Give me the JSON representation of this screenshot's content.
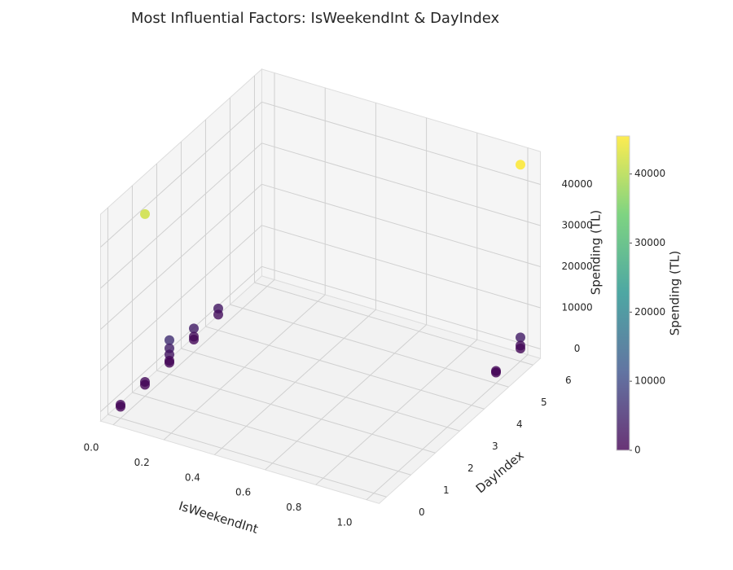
{
  "chart_data": {
    "type": "scatter3d",
    "title": "Most Influential Factors: IsWeekendInt & DayIndex",
    "xlabel": "IsWeekendInt",
    "ylabel": "DayIndex",
    "zlabel": "Spending (TL)",
    "x": [
      0,
      0,
      0,
      0,
      0,
      0,
      0,
      0,
      0,
      0,
      0,
      0,
      0,
      0,
      0,
      1,
      1,
      1,
      1,
      1,
      1
    ],
    "y": [
      0,
      0,
      1,
      1,
      1,
      2,
      2,
      2,
      2,
      2,
      3,
      3,
      3,
      4,
      4,
      5,
      5,
      6,
      6,
      6,
      6
    ],
    "z": [
      1000,
      500,
      1200,
      500,
      42000,
      6000,
      4000,
      2500,
      1000,
      500,
      3500,
      1500,
      800,
      3000,
      1500,
      700,
      300,
      3500,
      1500,
      800,
      45500
    ],
    "xlim": [
      -0.05,
      1.05
    ],
    "ylim": [
      -0.3,
      6.3
    ],
    "zlim": [
      -2300,
      48000
    ],
    "xticks": [
      {
        "value": 0,
        "label": "0.0"
      },
      0.2,
      0.4,
      0.6,
      0.8,
      {
        "value": 1,
        "label": "1.0"
      }
    ],
    "yticks": [
      0,
      1,
      2,
      3,
      4,
      5,
      6
    ],
    "zticks": [
      0,
      10000,
      20000,
      30000,
      40000
    ],
    "cmap": "viridis",
    "alpha": 0.8,
    "clim": [
      0,
      45500
    ],
    "clabel": "Spending (TL)",
    "cticks": [
      0,
      10000,
      20000,
      30000,
      40000
    ],
    "grid": true
  }
}
